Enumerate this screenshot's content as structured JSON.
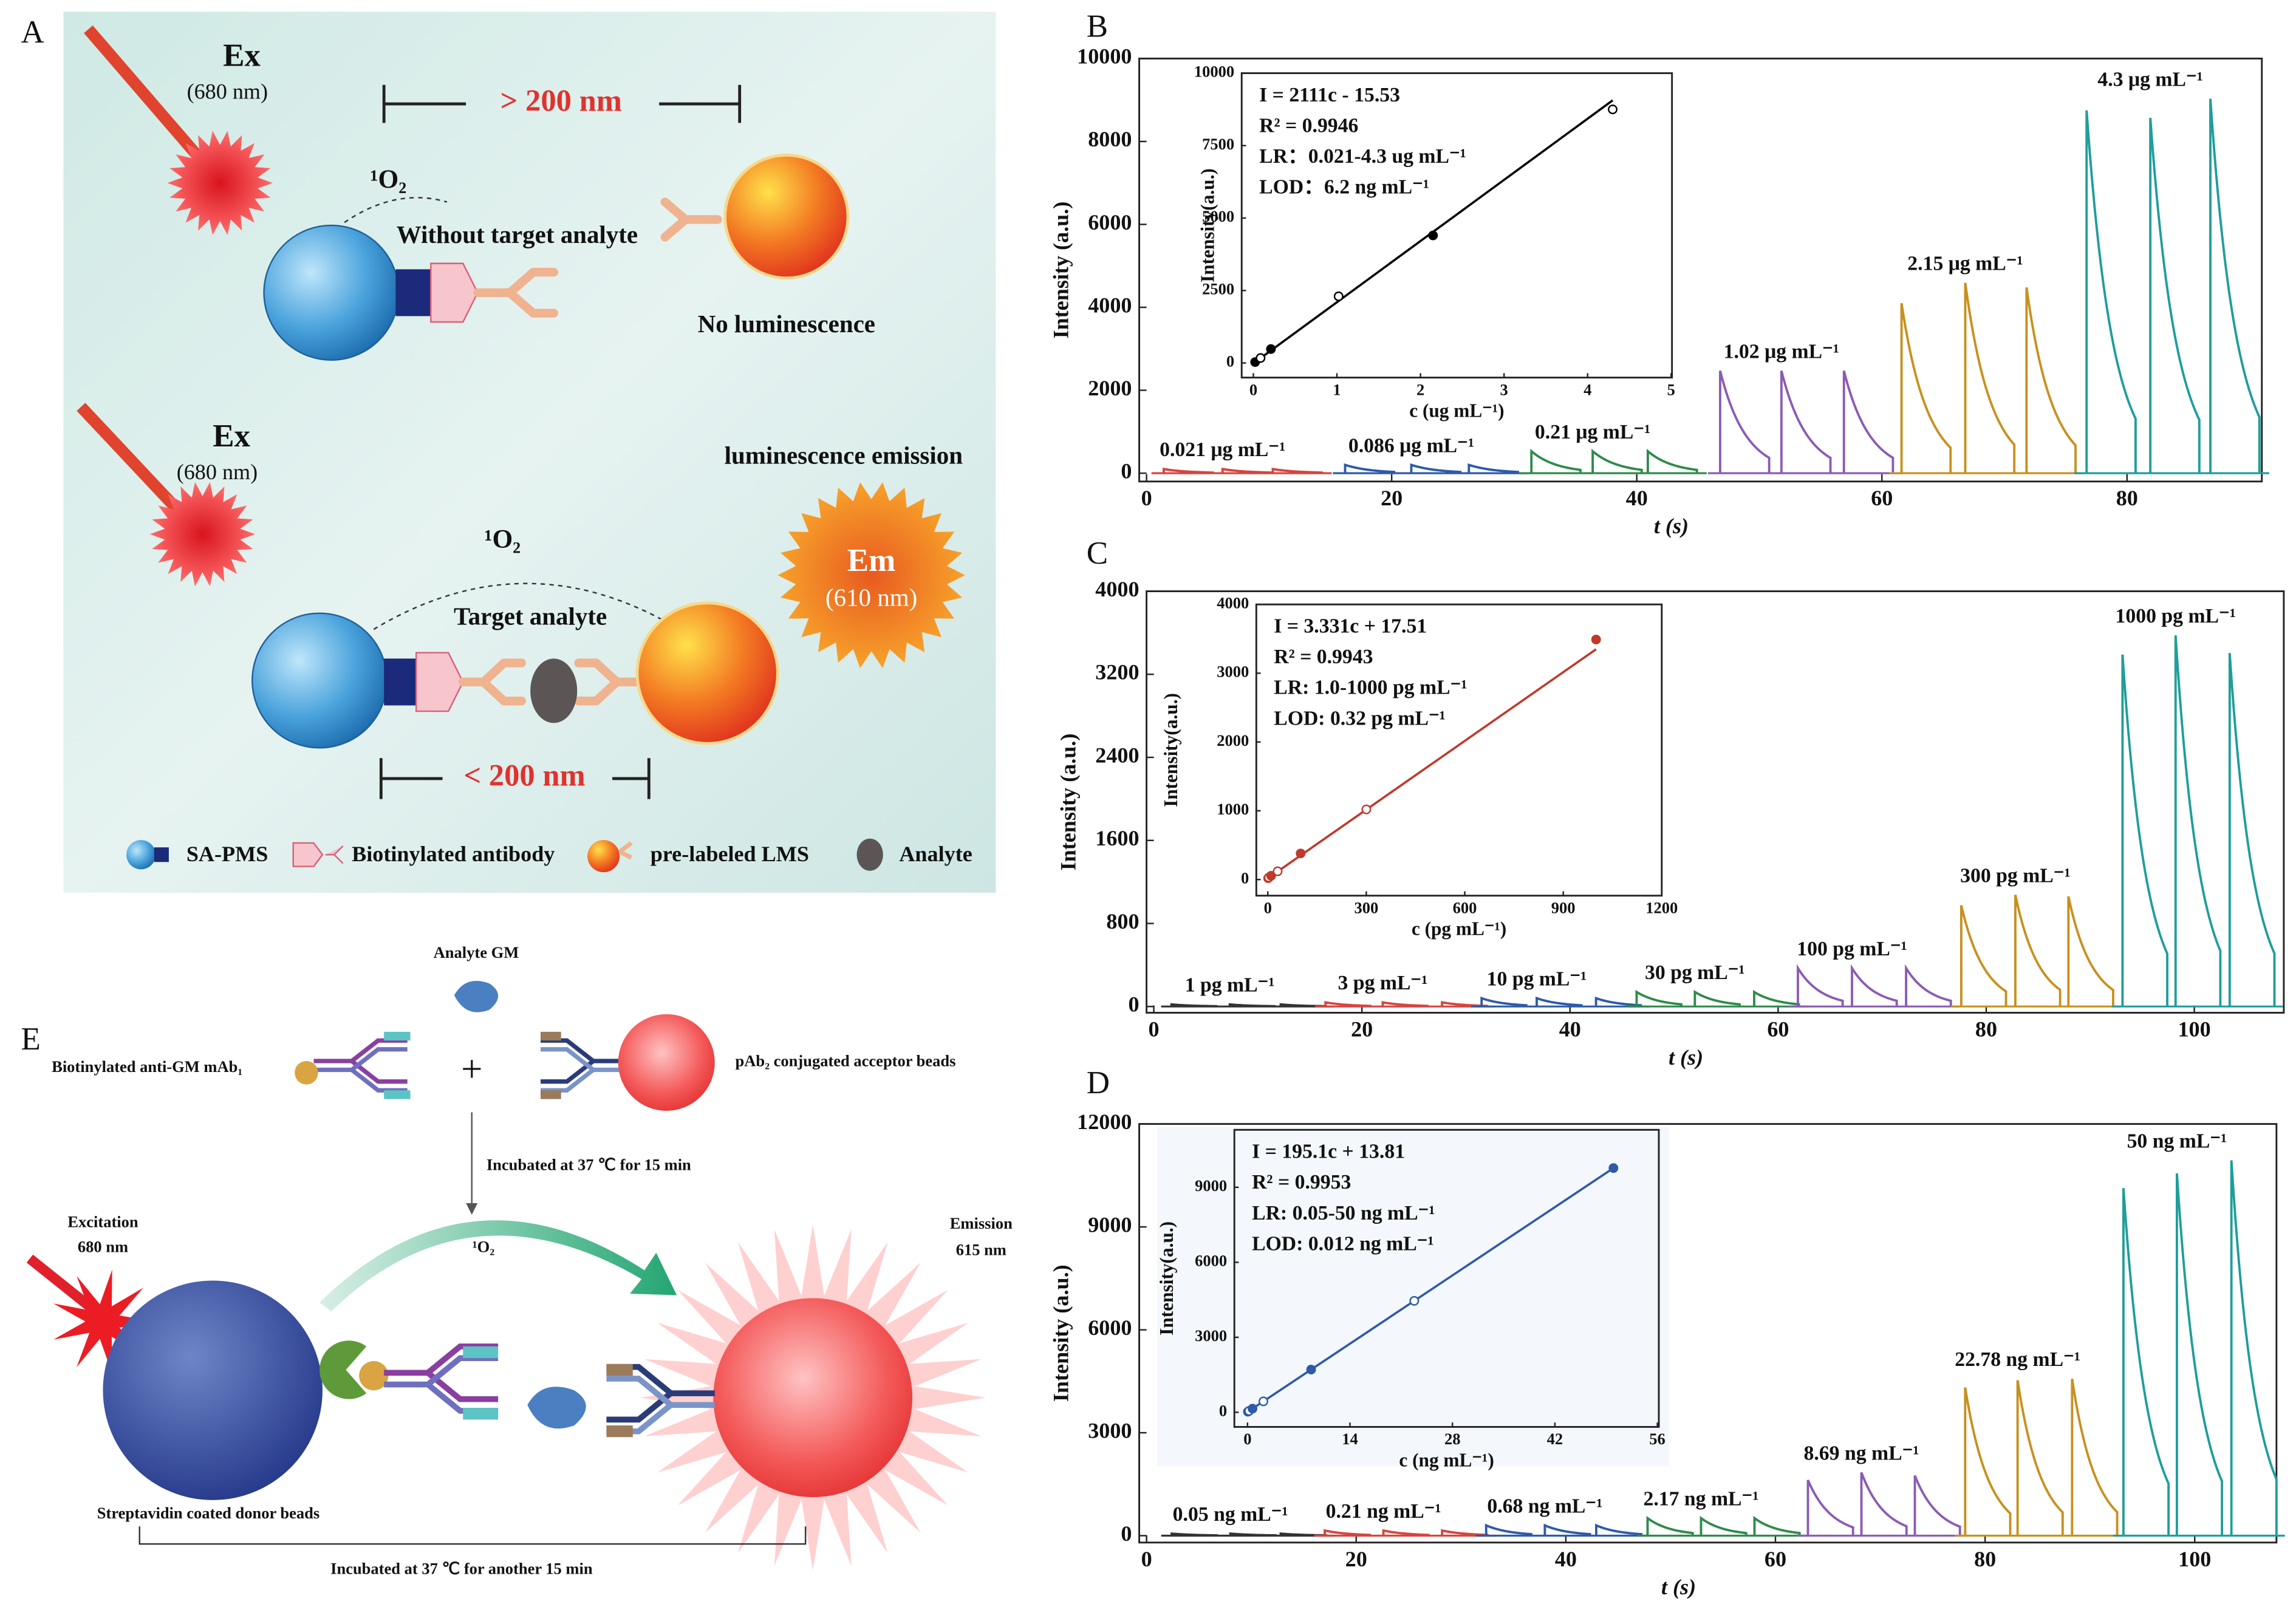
{
  "diagram_A": {
    "label": "A",
    "ex_top": "Ex",
    "wl_top": "(680 nm)",
    "dist_top": "> 200 nm",
    "o2_top": "¹O₂",
    "state_top": "Without target analyte",
    "result_top": "No luminescence",
    "ex_bottom": "Ex",
    "wl_bottom": "(680 nm)",
    "result_bottom": "luminescence emission",
    "o2_bottom": "¹O₂",
    "em": "Em",
    "em_wl": "(610 nm)",
    "state_bottom": "Target analyte",
    "dist_bottom": "< 200 nm",
    "legend": [
      "SA-PMS",
      "Biotinylated antibody",
      "pre-labeled LMS",
      "Analyte"
    ]
  },
  "diagram_E": {
    "label": "E",
    "analyte": "Analyte GM",
    "antibody": "Biotinylated anti-GM mAb₁",
    "plus": "+",
    "acceptor": "pAb₂ conjugated  acceptor beads",
    "step1": "Incubated at 37 ℃ for 15 min",
    "excitation": "Excitation",
    "excitation_wl": "680 nm",
    "o2": "¹O₂",
    "emission": "Emission",
    "emission_wl": "615 nm",
    "donor": "Streptavidin coated donor beads",
    "step2": "Incubated at 37 ℃ for another 15 min"
  },
  "chart_data": [
    {
      "type": "line",
      "label": "B",
      "xlabel": "t (s)",
      "ylabel": "Intensity (a.u.)",
      "xlim": [
        -0.6,
        91
      ],
      "xticks": [
        0,
        20,
        40,
        60,
        80
      ],
      "ylim": [
        -200,
        10000
      ],
      "yticks": [
        0,
        2000,
        4000,
        6000,
        8000,
        10000
      ],
      "series": [
        {
          "name": "0.021 μg mL⁻¹",
          "color": "#d6453f",
          "x": [
            1.4,
            6.2,
            10.3
          ],
          "values": [
            100,
            100,
            100
          ]
        },
        {
          "name": "0.086 μg mL⁻¹",
          "color": "#2e5aa8",
          "x": [
            16.2,
            21.6,
            26.3
          ],
          "values": [
            200,
            200,
            200
          ]
        },
        {
          "name": "0.21 μg mL⁻¹",
          "color": "#2e8b4a",
          "x": [
            31.4,
            36.4,
            40.9
          ],
          "values": [
            530,
            530,
            530
          ]
        },
        {
          "name": "1.02 μg mL⁻¹",
          "color": "#8b5bb5",
          "x": [
            46.8,
            51.8,
            56.9
          ],
          "values": [
            2470,
            2470,
            2470
          ]
        },
        {
          "name": "2.15 μg mL⁻¹",
          "color": "#c8901e",
          "x": [
            61.6,
            66.8,
            71.8
          ],
          "values": [
            4100,
            4590,
            4480
          ]
        },
        {
          "name": "4.3 μg mL⁻¹",
          "color": "#1f9e9b",
          "x": [
            76.7,
            81.9,
            86.8
          ],
          "values": [
            8750,
            8570,
            9030
          ]
        }
      ],
      "inset": {
        "type": "scatter",
        "equation": [
          "I = 2111c - 15.53",
          "R² = 0.9946",
          "LR：0.021-4.3 ug mL⁻¹",
          "LOD：6.2 ng mL⁻¹"
        ],
        "xlabel": "c (ug mL⁻¹)",
        "ylabel": "Intensity(a.u.)",
        "xlim": [
          -0.14,
          5.01
        ],
        "xticks": [
          0,
          1,
          2,
          3,
          4,
          5
        ],
        "ylim": [
          -505,
          10000
        ],
        "yticks": [
          0,
          2500,
          5000,
          7500,
          10000
        ],
        "color": "#000000",
        "x": [
          0.021,
          0.086,
          0.21,
          1.02,
          2.15,
          4.3
        ],
        "values": [
          30,
          170,
          480,
          2300,
          4400,
          8750
        ],
        "fit": {
          "slope": 2111,
          "intercept": -15.53
        }
      }
    },
    {
      "type": "line",
      "label": "C",
      "xlabel": "t (s)",
      "ylabel": "Intensity (a.u.)",
      "xlim": [
        -0.7,
        108.6
      ],
      "xticks": [
        0,
        20,
        40,
        60,
        80,
        100
      ],
      "ylim": [
        -60,
        4000
      ],
      "yticks": [
        0,
        800,
        1600,
        2400,
        3200,
        4000
      ],
      "series": [
        {
          "name": "1 pg mL⁻¹",
          "color": "#333333",
          "x": [
            1.7,
            7.3,
            12.2
          ],
          "values": [
            20,
            20,
            20
          ]
        },
        {
          "name": "3 pg mL⁻¹",
          "color": "#d6453f",
          "x": [
            16.5,
            22,
            27.7
          ],
          "values": [
            40,
            40,
            40
          ]
        },
        {
          "name": "10 pg mL⁻¹",
          "color": "#2e5aa8",
          "x": [
            31.5,
            36.8,
            42.5
          ],
          "values": [
            80,
            80,
            80
          ]
        },
        {
          "name": "30 pg mL⁻¹",
          "color": "#2e8b4a",
          "x": [
            46.4,
            52,
            57.7
          ],
          "values": [
            140,
            140,
            140
          ]
        },
        {
          "name": "100 pg mL⁻¹",
          "color": "#8b5bb5",
          "x": [
            61.9,
            67.1,
            72.3
          ],
          "values": [
            370,
            370,
            370
          ]
        },
        {
          "name": "300 pg mL⁻¹",
          "color": "#c8901e",
          "x": [
            77.6,
            82.8,
            87.9
          ],
          "values": [
            975,
            1075,
            1060
          ]
        },
        {
          "name": "1000 pg mL⁻¹",
          "color": "#1f9e9b",
          "x": [
            93.1,
            98.2,
            103.4
          ],
          "values": [
            3390,
            3575,
            3405
          ]
        }
      ],
      "inset": {
        "type": "scatter",
        "equation": [
          "I = 3.331c + 17.51",
          "R² = 0.9943",
          "LR: 1.0-1000 pg mL⁻¹",
          "LOD: 0.32 pg mL⁻¹"
        ],
        "xlabel": "c (pg mL⁻¹)",
        "ylabel": "Intensity(a.u.)",
        "xlim": [
          -35,
          1200
        ],
        "xticks": [
          0,
          300,
          600,
          900,
          1200
        ],
        "ylim": [
          -234,
          4000
        ],
        "yticks": [
          0,
          1000,
          2000,
          3000,
          4000
        ],
        "color": "#c0392b",
        "x": [
          1,
          3,
          10,
          30,
          100,
          300,
          1000
        ],
        "values": [
          20,
          30,
          55,
          120,
          380,
          1020,
          3490
        ],
        "fit": {
          "slope": 3.331,
          "intercept": 17.51
        }
      }
    },
    {
      "type": "line",
      "label": "D",
      "xlabel": "t (s)",
      "ylabel": "Intensity (a.u.)",
      "xlim": [
        -0.7,
        107.8
      ],
      "xticks": [
        0,
        20,
        40,
        60,
        80,
        100
      ],
      "ylim": [
        -200,
        12000
      ],
      "yticks": [
        0,
        3000,
        6000,
        9000,
        12000
      ],
      "series": [
        {
          "name": "0.05 ng mL⁻¹",
          "color": "#333333",
          "x": [
            2.4,
            8,
            12.8
          ],
          "values": [
            60,
            60,
            60
          ]
        },
        {
          "name": "0.21 ng mL⁻¹",
          "color": "#d6453f",
          "x": [
            17,
            22.6,
            28.2
          ],
          "values": [
            150,
            150,
            150
          ]
        },
        {
          "name": "0.68 ng mL⁻¹",
          "color": "#2e5aa8",
          "x": [
            32.4,
            38,
            42.9
          ],
          "values": [
            300,
            300,
            300
          ]
        },
        {
          "name": "2.17 ng mL⁻¹",
          "color": "#2e8b4a",
          "x": [
            47.8,
            52.9,
            58
          ],
          "values": [
            510,
            510,
            510
          ]
        },
        {
          "name": "8.69 ng mL⁻¹",
          "color": "#8b5bb5",
          "x": [
            63.1,
            68.2,
            73.3
          ],
          "values": [
            1620,
            1840,
            1750
          ]
        },
        {
          "name": "22.78 ng mL⁻¹",
          "color": "#c8901e",
          "x": [
            78.1,
            83.1,
            88.3
          ],
          "values": [
            4320,
            4530,
            4570
          ]
        },
        {
          "name": "50 ng mL⁻¹",
          "color": "#1f9e9b",
          "x": [
            93.2,
            98.3,
            103.5
          ],
          "values": [
            10130,
            10560,
            10940
          ]
        }
      ],
      "inset": {
        "type": "scatter",
        "equation": [
          "I = 195.1c + 13.81",
          "R² = 0.9953",
          "LR: 0.05-50 ng mL⁻¹",
          "LOD: 0.012 ng mL⁻¹"
        ],
        "xlabel": "c (ng mL⁻¹)",
        "ylabel": "Intensity(a.u.)",
        "xlim": [
          -1.8,
          56.2
        ],
        "xticks": [
          0,
          14,
          28,
          42,
          56
        ],
        "ylim": [
          -585,
          11300
        ],
        "yticks": [
          0,
          3000,
          6000,
          9000
        ],
        "color": "#2e5aa8",
        "x": [
          0.05,
          0.21,
          0.68,
          2.17,
          8.69,
          22.78,
          50
        ],
        "values": [
          24,
          55,
          146,
          437,
          1709,
          4458,
          9770
        ],
        "fit": {
          "slope": 195.1,
          "intercept": 13.81
        }
      }
    }
  ]
}
